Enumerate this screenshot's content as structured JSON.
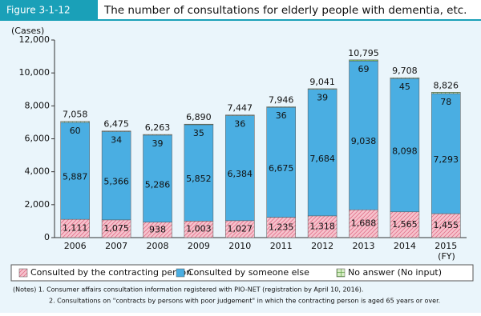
{
  "figure_label": "Figure 3-1-12",
  "chart_data": {
    "type": "stacked_bar",
    "title": "The number of consultations for elderly people with dementia, etc.",
    "y_label": "(Cases)",
    "x_label": "(FY)",
    "categories": [
      "2006",
      "2007",
      "2008",
      "2009",
      "2010",
      "2011",
      "2012",
      "2013",
      "2014",
      "2015"
    ],
    "series": [
      {
        "name": "Consulted by the contracting person",
        "color": "#f6c3cd",
        "hatch": "diagonal",
        "hatch_color": "#e0708a",
        "values": [
          1111,
          1075,
          938,
          1003,
          1027,
          1235,
          1318,
          1688,
          1565,
          1455
        ],
        "value_labels": [
          "1,111",
          "1,075",
          "938",
          "1,003",
          "1,027",
          "1,235",
          "1,318",
          "1,688",
          "1,565",
          "1,455"
        ]
      },
      {
        "name": "Consulted by someone else",
        "color": "#4aaee2",
        "values": [
          5887,
          5366,
          5286,
          5852,
          6384,
          6675,
          7684,
          9038,
          8098,
          7293
        ],
        "value_labels": [
          "5,887",
          "5,366",
          "5,286",
          "5,852",
          "6,384",
          "6,675",
          "7,684",
          "9,038",
          "8,098",
          "7,293"
        ]
      },
      {
        "name": "No answer (No input)",
        "color": "#d6ecc4",
        "hatch": "grid",
        "hatch_color": "#6aaa50",
        "values": [
          60,
          34,
          39,
          35,
          36,
          36,
          39,
          69,
          45,
          78
        ]
      }
    ],
    "totals": [
      7058,
      6475,
      6263,
      6890,
      7447,
      7946,
      9041,
      10795,
      9708,
      8826
    ],
    "total_labels": [
      "7,058",
      "6,475",
      "6,263",
      "6,890",
      "7,447",
      "7,946",
      "9,041",
      "10,795",
      "9,708",
      "8,826"
    ],
    "ylim": [
      0,
      12000
    ],
    "yticks": [
      0,
      {
        "value": 2000,
        "label": "2,000"
      },
      {
        "value": 4000,
        "label": "4,000"
      },
      {
        "value": 6000,
        "label": "6,000"
      },
      {
        "value": 8000,
        "label": "8,000"
      },
      {
        "value": 10000,
        "label": "10,000"
      },
      {
        "value": 12000,
        "label": "12,000"
      }
    ],
    "legend": "bottom"
  },
  "notes": [
    "(Notes) 1. Consumer affairs consultation information registered with PIO-NET (registration by April 10, 2016).",
    "2. Consultations on \"contracts by persons with poor judgement\" in which the contracting person is aged 65 years or over."
  ]
}
